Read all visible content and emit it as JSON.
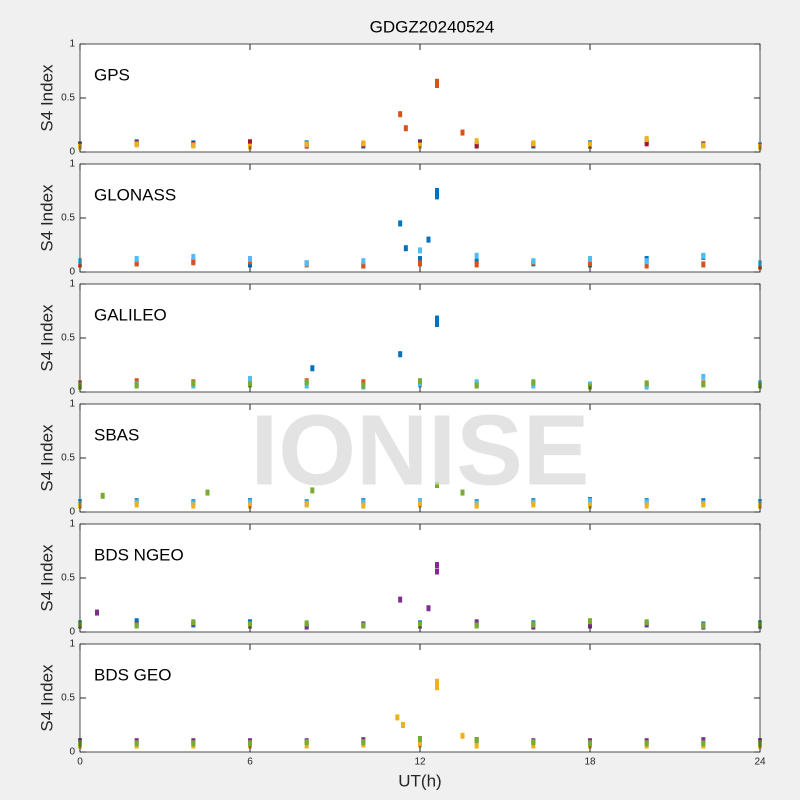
{
  "title": "GDGZ20240524",
  "watermark": "IONISE",
  "chart_data": [
    {
      "type": "scatter",
      "label": "GPS",
      "ylabel": "S4 Index",
      "xlim": [
        0,
        24
      ],
      "ylim": [
        0,
        1
      ],
      "xticks": [
        0,
        6,
        12,
        18,
        24
      ],
      "yticks": [
        0,
        0.5,
        1
      ],
      "show_xticklabels": false,
      "x": [
        0,
        2,
        4,
        6,
        8,
        10,
        12,
        14,
        16,
        18,
        20,
        22,
        24
      ],
      "series": [
        {
          "color": "#0072BD",
          "values": [
            0.07,
            0.09,
            0.08,
            0.07,
            0.08,
            0.06,
            0.09,
            0.07,
            0.06,
            0.08,
            0.1,
            0.07,
            0.06
          ]
        },
        {
          "color": "#A2142F",
          "values": [
            0.06,
            0.08,
            0.07,
            0.09,
            0.06,
            0.07,
            0.08,
            0.06,
            0.07,
            0.06,
            0.08,
            0.07,
            0.05
          ]
        },
        {
          "color": "#EDB120",
          "values": [
            0.05,
            0.07,
            0.06,
            0.05,
            0.07,
            0.08,
            0.06,
            0.1,
            0.08,
            0.07,
            0.12,
            0.06,
            0.05
          ]
        },
        {
          "color": "#D95319",
          "x": [
            11.3,
            11.5,
            12.6,
            12.6,
            13.5
          ],
          "values": [
            0.35,
            0.22,
            0.65,
            0.62,
            0.18
          ]
        }
      ]
    },
    {
      "type": "scatter",
      "label": "GLONASS",
      "ylabel": "S4 Index",
      "xlim": [
        0,
        24
      ],
      "ylim": [
        0,
        1
      ],
      "xticks": [
        0,
        6,
        12,
        18,
        24
      ],
      "yticks": [
        0,
        0.5,
        1
      ],
      "show_xticklabels": false,
      "x": [
        0,
        2,
        4,
        6,
        8,
        10,
        12,
        14,
        16,
        18,
        20,
        22,
        24
      ],
      "series": [
        {
          "color": "#0072BD",
          "values": [
            0.09,
            0.08,
            0.1,
            0.07,
            0.08,
            0.06,
            0.12,
            0.1,
            0.08,
            0.07,
            0.12,
            0.14,
            0.06
          ]
        },
        {
          "color": "#D95319",
          "values": [
            0.07,
            0.08,
            0.09,
            0.1,
            0.07,
            0.06,
            0.08,
            0.07,
            0.09,
            0.08,
            0.06,
            0.07,
            0.05
          ]
        },
        {
          "color": "#4DBEEE",
          "values": [
            0.1,
            0.12,
            0.14,
            0.12,
            0.08,
            0.1,
            0.2,
            0.15,
            0.1,
            0.12,
            0.1,
            0.15,
            0.08
          ]
        },
        {
          "color": "#0072BD",
          "x": [
            11.3,
            11.5,
            12.6,
            12.6,
            12.3
          ],
          "values": [
            0.45,
            0.22,
            0.75,
            0.7,
            0.3
          ]
        }
      ]
    },
    {
      "type": "scatter",
      "label": "GALILEO",
      "ylabel": "S4 Index",
      "xlim": [
        0,
        24
      ],
      "ylim": [
        0,
        1
      ],
      "xticks": [
        0,
        6,
        12,
        18,
        24
      ],
      "yticks": [
        0,
        0.5,
        1
      ],
      "show_xticklabels": false,
      "x": [
        0,
        2,
        4,
        6,
        8,
        10,
        12,
        14,
        16,
        18,
        20,
        22,
        24
      ],
      "series": [
        {
          "color": "#D95319",
          "values": [
            0.08,
            0.1,
            0.09,
            0.07,
            0.1,
            0.09,
            0.08,
            0.07,
            0.08,
            0.06,
            0.07,
            0.08,
            0.07
          ]
        },
        {
          "color": "#4DBEEE",
          "values": [
            0.06,
            0.07,
            0.06,
            0.12,
            0.06,
            0.05,
            0.07,
            0.09,
            0.06,
            0.07,
            0.05,
            0.14,
            0.08
          ]
        },
        {
          "color": "#77AC30",
          "values": [
            0.05,
            0.06,
            0.08,
            0.07,
            0.09,
            0.06,
            0.1,
            0.06,
            0.09,
            0.05,
            0.08,
            0.07,
            0.06
          ]
        },
        {
          "color": "#0072BD",
          "x": [
            11.3,
            12.6,
            12.6,
            8.2
          ],
          "values": [
            0.35,
            0.68,
            0.63,
            0.22
          ]
        }
      ]
    },
    {
      "type": "scatter",
      "label": "SBAS",
      "ylabel": "S4 Index",
      "xlim": [
        0,
        24
      ],
      "ylim": [
        0,
        1
      ],
      "xticks": [
        0,
        6,
        12,
        18,
        24
      ],
      "yticks": [
        0,
        0.5,
        1
      ],
      "show_xticklabels": false,
      "x": [
        0,
        2,
        4,
        6,
        8,
        10,
        12,
        14,
        16,
        18,
        20,
        22,
        24
      ],
      "series": [
        {
          "color": "#0072BD",
          "values": [
            0.09,
            0.1,
            0.09,
            0.1,
            0.09,
            0.1,
            0.1,
            0.09,
            0.1,
            0.11,
            0.1,
            0.1,
            0.09
          ]
        },
        {
          "color": "#4DBEEE",
          "values": [
            0.08,
            0.09,
            0.08,
            0.09,
            0.08,
            0.09,
            0.1,
            0.08,
            0.09,
            0.1,
            0.09,
            0.08,
            0.08
          ]
        },
        {
          "color": "#EDB120",
          "values": [
            0.06,
            0.07,
            0.06,
            0.06,
            0.07,
            0.06,
            0.07,
            0.06,
            0.07,
            0.06,
            0.06,
            0.07,
            0.06
          ]
        },
        {
          "color": "#77AC30",
          "x": [
            0.8,
            4.5,
            8.2,
            12.6,
            13.5
          ],
          "values": [
            0.15,
            0.18,
            0.2,
            0.25,
            0.18
          ]
        }
      ]
    },
    {
      "type": "scatter",
      "label": "BDS NGEO",
      "ylabel": "S4 Index",
      "xlim": [
        0,
        24
      ],
      "ylim": [
        0,
        1
      ],
      "xticks": [
        0,
        6,
        12,
        18,
        24
      ],
      "yticks": [
        0,
        0.5,
        1
      ],
      "show_xticklabels": false,
      "x": [
        0,
        2,
        4,
        6,
        8,
        10,
        12,
        14,
        16,
        18,
        20,
        22,
        24
      ],
      "series": [
        {
          "color": "#0072BD",
          "values": [
            0.08,
            0.1,
            0.07,
            0.09,
            0.06,
            0.07,
            0.08,
            0.07,
            0.08,
            0.06,
            0.08,
            0.07,
            0.08
          ]
        },
        {
          "color": "#7E2F8E",
          "values": [
            0.06,
            0.07,
            0.08,
            0.06,
            0.05,
            0.07,
            0.06,
            0.09,
            0.05,
            0.06,
            0.07,
            0.05,
            0.06
          ]
        },
        {
          "color": "#77AC30",
          "values": [
            0.07,
            0.06,
            0.09,
            0.07,
            0.08,
            0.06,
            0.07,
            0.06,
            0.07,
            0.1,
            0.09,
            0.06,
            0.07
          ]
        },
        {
          "color": "#7E2F8E",
          "x": [
            11.3,
            12.3,
            12.6,
            12.6,
            0.6
          ],
          "values": [
            0.3,
            0.22,
            0.62,
            0.56,
            0.18
          ]
        }
      ]
    },
    {
      "type": "scatter",
      "label": "BDS GEO",
      "ylabel": "S4 Index",
      "xlabel": "UT(h)",
      "xlim": [
        0,
        24
      ],
      "ylim": [
        0,
        1
      ],
      "xticks": [
        0,
        6,
        12,
        18,
        24
      ],
      "yticks": [
        0,
        0.5,
        1
      ],
      "show_xticklabels": true,
      "x": [
        0,
        2,
        4,
        6,
        8,
        10,
        12,
        14,
        16,
        18,
        20,
        22,
        24
      ],
      "series": [
        {
          "color": "#7E2F8E",
          "values": [
            0.1,
            0.1,
            0.1,
            0.1,
            0.1,
            0.11,
            0.12,
            0.11,
            0.1,
            0.1,
            0.1,
            0.11,
            0.1
          ]
        },
        {
          "color": "#EDB120",
          "values": [
            0.06,
            0.06,
            0.06,
            0.06,
            0.06,
            0.07,
            0.07,
            0.06,
            0.06,
            0.06,
            0.06,
            0.06,
            0.06
          ]
        },
        {
          "color": "#77AC30",
          "values": [
            0.08,
            0.08,
            0.08,
            0.08,
            0.09,
            0.09,
            0.12,
            0.11,
            0.09,
            0.08,
            0.08,
            0.08,
            0.08
          ]
        },
        {
          "color": "#EDB120",
          "x": [
            11.2,
            11.4,
            12.6,
            12.6,
            13.5
          ],
          "values": [
            0.32,
            0.25,
            0.65,
            0.6,
            0.15
          ]
        }
      ]
    }
  ]
}
